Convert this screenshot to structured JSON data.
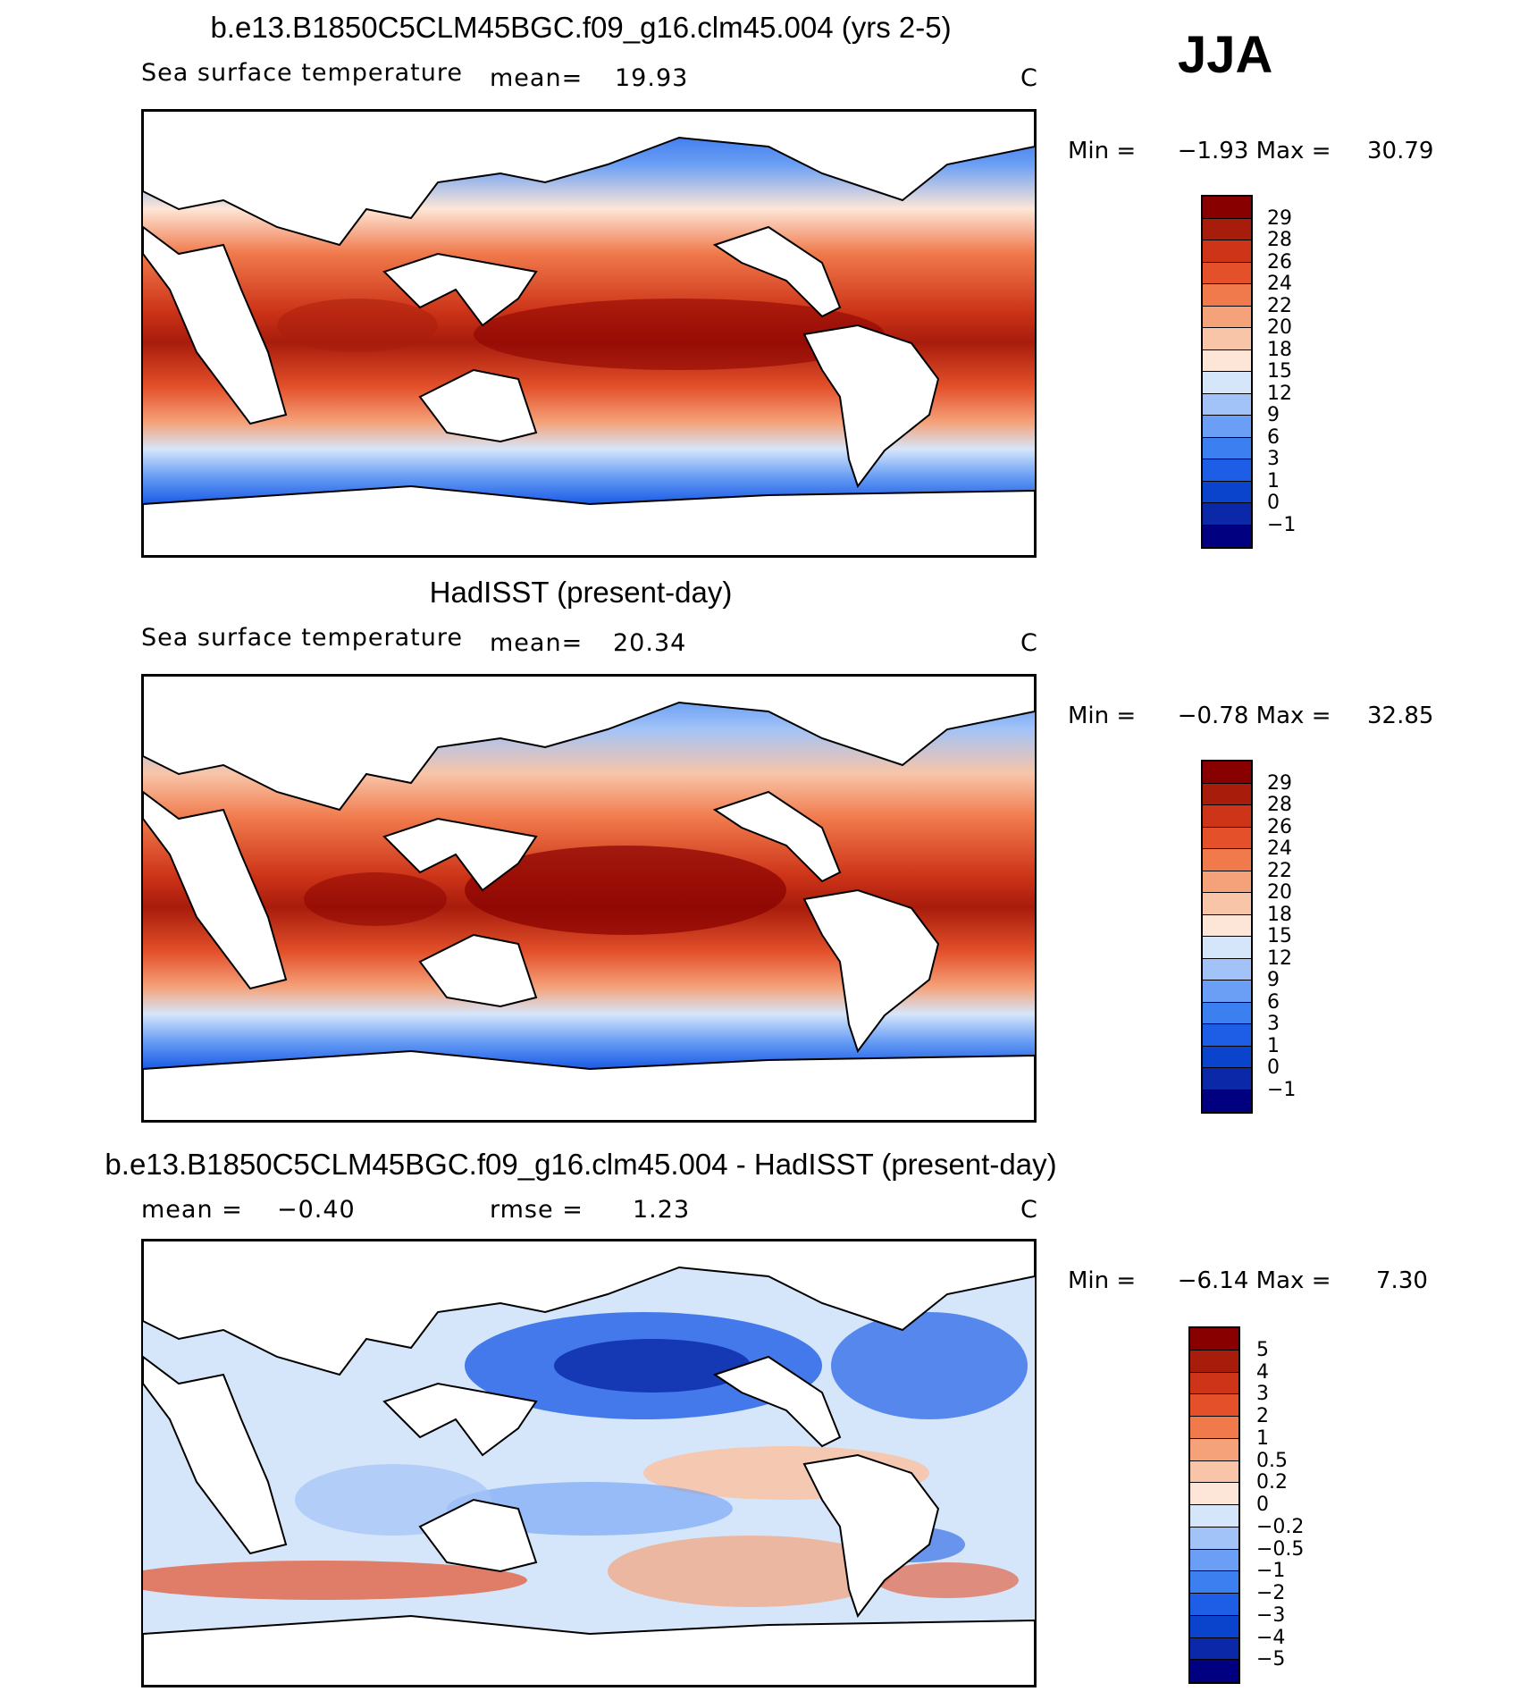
{
  "season": "JJA",
  "colors": {
    "abs_scale": [
      "#000080",
      "#0a28a8",
      "#0a44cc",
      "#1e5ee6",
      "#3c7ff0",
      "#6a9ff5",
      "#a2c3f7",
      "#d6e6fa",
      "#fde6d7",
      "#f8c5a8",
      "#f5a27a",
      "#f07a4c",
      "#e3502a",
      "#cd3418",
      "#a81c0c",
      "#880000"
    ],
    "diff_scale": [
      "#000080",
      "#0a28a8",
      "#0a44cc",
      "#1e5ee6",
      "#3c7ff0",
      "#6a9ff5",
      "#a2c3f7",
      "#d6e6fa",
      "#fde6d7",
      "#f8c5a8",
      "#f5a27a",
      "#f07a4c",
      "#e3502a",
      "#cd3418",
      "#a81c0c",
      "#880000"
    ]
  },
  "panels": [
    {
      "title": "b.e13.B1850C5CLM45BGC.f09_g16.clm45.004 (yrs 2-5)",
      "var_label": "Sea surface temperature",
      "stat_label": "mean=",
      "stat_value": "19.93",
      "units": "C",
      "min_label": "Min =",
      "min_value": "−1.93",
      "max_label": "Max =",
      "max_value": "30.79",
      "colorbar_labels": [
        "29",
        "28",
        "26",
        "24",
        "22",
        "20",
        "18",
        "15",
        "12",
        "9",
        "6",
        "3",
        "1",
        "0",
        "−1"
      ]
    },
    {
      "title": "HadISST (present-day)",
      "var_label": "Sea surface temperature",
      "stat_label": "mean=",
      "stat_value": "20.34",
      "units": "C",
      "min_label": "Min =",
      "min_value": "−0.78",
      "max_label": "Max =",
      "max_value": "32.85",
      "colorbar_labels": [
        "29",
        "28",
        "26",
        "24",
        "22",
        "20",
        "18",
        "15",
        "12",
        "9",
        "6",
        "3",
        "1",
        "0",
        "−1"
      ]
    },
    {
      "title": "b.e13.B1850C5CLM45BGC.f09_g16.clm45.004 - HadISST (present-day)",
      "stat_label": "mean =",
      "stat_value": "−0.40",
      "stat2_label": "rmse =",
      "stat2_value": "1.23",
      "units": "C",
      "min_label": "Min =",
      "min_value": "−6.14",
      "max_label": "Max =",
      "max_value": "7.30",
      "colorbar_labels": [
        "5",
        "4",
        "3",
        "2",
        "1",
        "0.5",
        "0.2",
        "0",
        "−0.2",
        "−0.5",
        "−1",
        "−2",
        "−3",
        "−4",
        "−5"
      ]
    }
  ]
}
